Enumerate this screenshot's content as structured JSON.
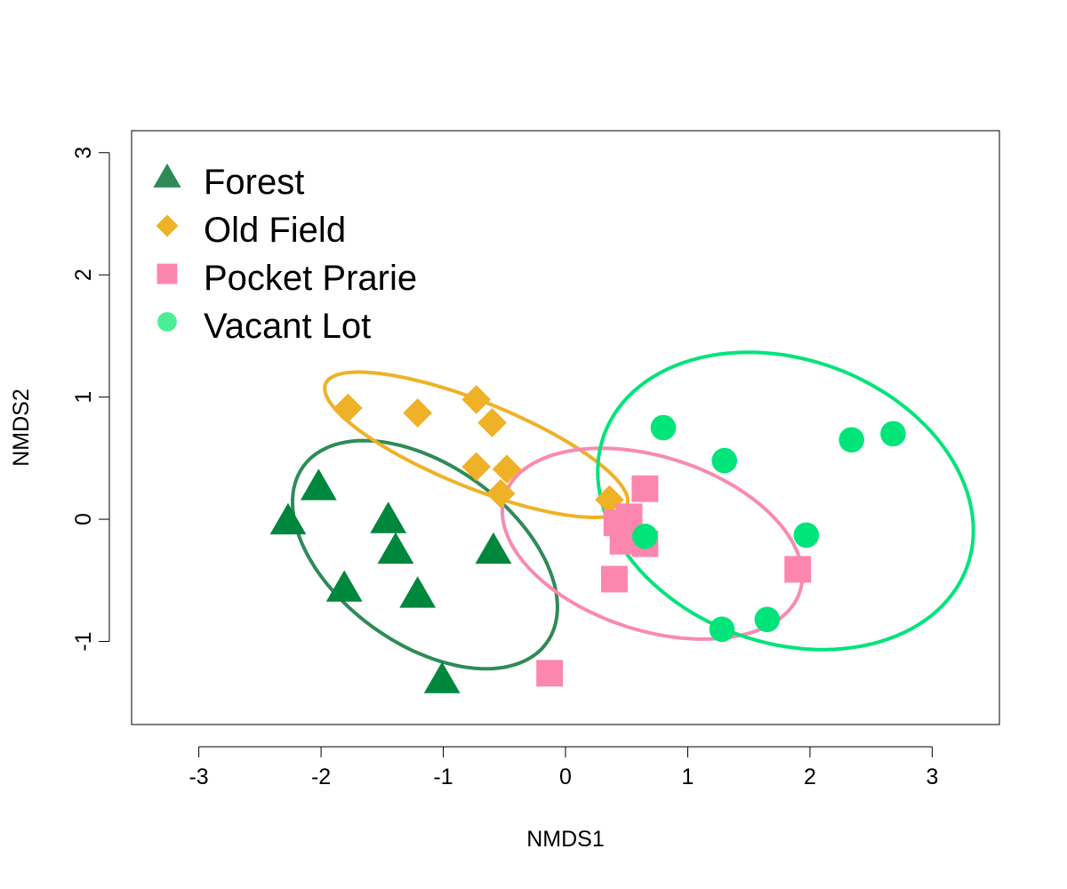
{
  "chart_data": {
    "type": "scatter",
    "xlabel": "NMDS1",
    "ylabel": "NMDS2",
    "xlim": [
      -3.55,
      3.55
    ],
    "ylim": [
      -1.68,
      3.18
    ],
    "x_ticks": [
      -3,
      -2,
      -1,
      0,
      1,
      2,
      3
    ],
    "y_ticks": [
      -1,
      0,
      1,
      2,
      3
    ],
    "grid": false,
    "legend_position": "top-left",
    "series": [
      {
        "name": "Forest",
        "marker": "triangle",
        "color": "#00873E",
        "legend_color": "#2E8B57",
        "ellipse_color": "#2E8B57",
        "points": [
          [
            -2.27,
            -0.02
          ],
          [
            -2.02,
            0.26
          ],
          [
            -1.81,
            -0.57
          ],
          [
            -1.45,
            -0.01
          ],
          [
            -1.39,
            -0.26
          ],
          [
            -1.21,
            -0.62
          ],
          [
            -0.59,
            -0.26
          ],
          [
            -1.01,
            -1.32
          ]
        ],
        "ellipse": {
          "cx": -1.15,
          "cy": -0.29,
          "rx": 1.23,
          "ry": 0.73,
          "angle": -36
        }
      },
      {
        "name": "Old Field",
        "marker": "diamond",
        "color": "#EFB126",
        "legend_color": "#EFB126",
        "ellipse_color": "#EFB126",
        "points": [
          [
            -1.78,
            0.91
          ],
          [
            -1.21,
            0.87
          ],
          [
            -0.73,
            0.98
          ],
          [
            -0.6,
            0.79
          ],
          [
            -0.73,
            0.43
          ],
          [
            -0.48,
            0.41
          ],
          [
            -0.53,
            0.21
          ],
          [
            0.36,
            0.16
          ]
        ],
        "ellipse": {
          "cx": -0.73,
          "cy": 0.61,
          "rx": 1.33,
          "ry": 0.35,
          "angle": -22
        }
      },
      {
        "name": "Pocket Prarie",
        "marker": "square",
        "color": "#FD86AF",
        "legend_color": "#FD86AF",
        "ellipse_color": "#F98BAE",
        "points": [
          [
            0.65,
            0.25
          ],
          [
            0.52,
            0.02
          ],
          [
            0.42,
            -0.03
          ],
          [
            0.47,
            -0.18
          ],
          [
            0.65,
            -0.2
          ],
          [
            0.4,
            -0.49
          ],
          [
            1.9,
            -0.41
          ],
          [
            -0.13,
            -1.26
          ]
        ],
        "ellipse": {
          "cx": 0.71,
          "cy": -0.2,
          "rx": 1.27,
          "ry": 0.71,
          "angle": -18
        }
      },
      {
        "name": "Vacant Lot",
        "marker": "circle",
        "color": "#00E47A",
        "legend_color": "#4CED97",
        "ellipse_color": "#00E47A",
        "points": [
          [
            0.8,
            0.75
          ],
          [
            1.3,
            0.48
          ],
          [
            2.34,
            0.65
          ],
          [
            2.68,
            0.7
          ],
          [
            0.65,
            -0.14
          ],
          [
            1.97,
            -0.13
          ],
          [
            1.28,
            -0.9
          ],
          [
            1.65,
            -0.82
          ]
        ],
        "ellipse": {
          "cx": 1.8,
          "cy": 0.15,
          "rx": 1.58,
          "ry": 1.16,
          "angle": -20
        }
      }
    ]
  }
}
